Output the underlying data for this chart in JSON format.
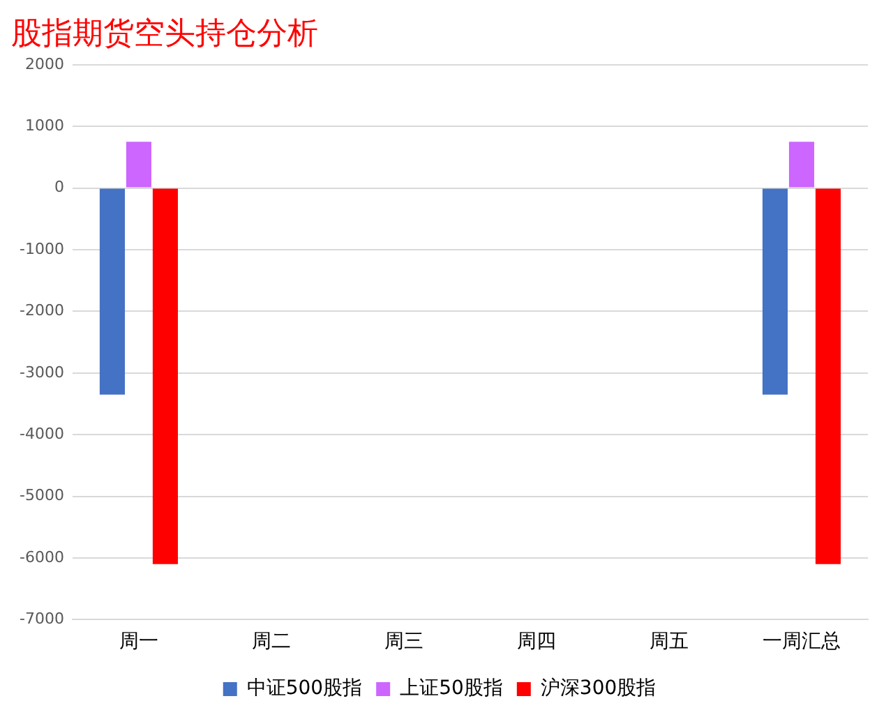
{
  "chart_data": {
    "type": "bar",
    "title": "股指期货空头持仓分析",
    "categories": [
      "周一",
      "周二",
      "周三",
      "周四",
      "周五",
      "一周汇总"
    ],
    "series": [
      {
        "name": "中证500股指",
        "color": "#4472c4",
        "values": [
          -3350,
          null,
          null,
          null,
          null,
          -3350
        ]
      },
      {
        "name": "上证50股指",
        "color": "#cc66ff",
        "values": [
          750,
          null,
          null,
          null,
          null,
          750
        ]
      },
      {
        "name": "沪深300股指",
        "color": "#ff0000",
        "values": [
          -6100,
          null,
          null,
          null,
          null,
          -6100
        ]
      }
    ],
    "ylim": [
      -7000,
      2000
    ],
    "yticks": [
      -7000,
      -6000,
      -5000,
      -4000,
      -3000,
      -2000,
      -1000,
      0,
      1000,
      2000
    ],
    "grid": "y",
    "legend": "bottom"
  }
}
